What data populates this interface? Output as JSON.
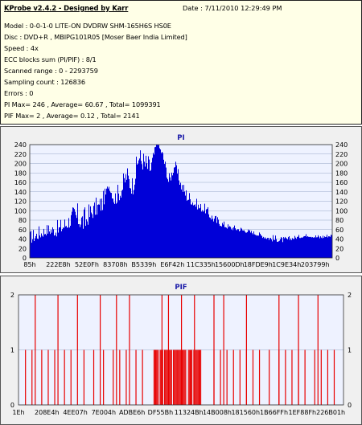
{
  "info": {
    "title": "KProbe v2.4.2 - Designed by Karr",
    "date": "Date : 7/11/2010 12:29:49 PM",
    "lines": [
      "Model : 0-0-1-0 LITE-ON DVDRW SHM-165H6S HS0E",
      "Disc : DVD+R , MBIPG101R05 [Moser Baer India Limited]",
      "Speed : 4x",
      "ECC blocks sum (PI/PIF) : 8/1",
      "Scanned range : 0 - 2293759",
      "Sampling count : 126836",
      "Errors : 0",
      "PI Max= 246 , Average= 60.67 , Total= 1099391",
      "PIF Max= 2 , Average= 0.12 , Total= 2141"
    ]
  },
  "colors": {
    "pi_fill": "#0000d8",
    "pif_bar": "#e80000",
    "plot_bg": "#eef2ff",
    "grid": "#98a8c8",
    "title": "#1a1aa8"
  },
  "chart_data": [
    {
      "type": "area",
      "title": "PI",
      "xlabel": "",
      "ylabel": "",
      "ylim": [
        0,
        240
      ],
      "y_ticks": [
        0,
        20,
        40,
        60,
        80,
        100,
        120,
        140,
        160,
        180,
        200,
        220,
        240
      ],
      "x_tick_labels": [
        "85h",
        "222E8h",
        "52E0Fh",
        "83708h",
        "B5339h",
        "E6F42h",
        "11C335h",
        "15600Dh",
        "18FDE9h",
        "1C9E34h",
        "203799h"
      ],
      "x": [
        0,
        0.03,
        0.06,
        0.09,
        0.12,
        0.15,
        0.18,
        0.2,
        0.22,
        0.24,
        0.26,
        0.28,
        0.3,
        0.32,
        0.34,
        0.36,
        0.38,
        0.4,
        0.42,
        0.44,
        0.46,
        0.48,
        0.5,
        0.52,
        0.54,
        0.56,
        0.58,
        0.6,
        0.62,
        0.64,
        0.66,
        0.68,
        0.7,
        0.73,
        0.76,
        0.8,
        0.84,
        0.88,
        0.92,
        0.96,
        1.0
      ],
      "values": [
        30,
        40,
        50,
        45,
        60,
        70,
        55,
        80,
        90,
        100,
        150,
        110,
        125,
        160,
        130,
        200,
        180,
        175,
        246,
        210,
        150,
        190,
        145,
        120,
        110,
        100,
        95,
        80,
        70,
        65,
        60,
        58,
        55,
        52,
        45,
        35,
        33,
        40,
        45,
        40,
        45
      ],
      "upper_values": [
        60,
        70,
        75,
        80,
        95,
        120,
        110,
        120,
        130,
        140,
        160,
        150,
        165,
        200,
        180,
        240,
        230,
        215,
        246,
        230,
        180,
        210,
        170,
        150,
        135,
        120,
        115,
        100,
        90,
        80,
        72,
        70,
        68,
        60,
        55,
        50,
        45,
        48,
        52,
        50,
        52
      ]
    },
    {
      "type": "bar",
      "title": "PIF",
      "xlabel": "",
      "ylabel": "",
      "ylim": [
        0,
        2
      ],
      "y_ticks": [
        0,
        1,
        2
      ],
      "x_tick_labels": [
        "1Eh",
        "208E4h",
        "4EE07h",
        "7E004h",
        "ADBE6h",
        "DF55Bh",
        "11324Bh",
        "14B008h",
        "181560h",
        "1B66FFh",
        "1EF88Fh",
        "226B01h"
      ],
      "dense_ranges": [
        [
          0.41,
          0.56
        ]
      ],
      "x_level1": [
        0.02,
        0.04,
        0.07,
        0.09,
        0.11,
        0.14,
        0.16,
        0.2,
        0.23,
        0.26,
        0.29,
        0.31,
        0.33,
        0.36,
        0.38,
        0.6,
        0.62,
        0.64,
        0.66,
        0.68,
        0.7,
        0.72,
        0.74,
        0.77,
        0.8,
        0.82,
        0.84,
        0.86,
        0.88,
        0.91,
        0.93,
        0.95,
        0.97
      ],
      "x_level2": [
        0.05,
        0.12,
        0.18,
        0.25,
        0.3,
        0.34,
        0.44,
        0.46,
        0.5,
        0.54,
        0.6,
        0.63,
        0.7,
        0.8,
        0.86,
        0.92
      ]
    }
  ]
}
